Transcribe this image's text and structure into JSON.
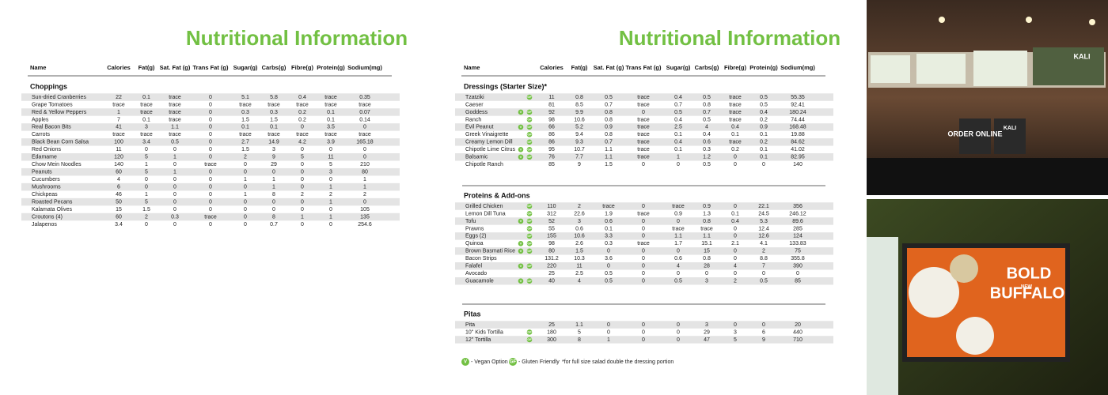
{
  "left": {
    "title": "Nutritional Information",
    "columns": [
      "Name",
      "Calories",
      "Fat(g)",
      "Sat. Fat (g)",
      "Trans Fat (g)",
      "Sugar(g)",
      "Carbs(g)",
      "Fibre(g)",
      "Protein(g)",
      "Sodium(mg)"
    ],
    "sections": [
      {
        "title": "Choppings",
        "rows": [
          {
            "name": "Sun-dried Cranberries",
            "values": [
              22,
              0.1,
              "trace",
              0,
              5.1,
              5.8,
              0.4,
              "trace",
              0.35
            ]
          },
          {
            "name": "Grape Tomatoes",
            "values": [
              "trace",
              "trace",
              "trace",
              0,
              "trace",
              "trace",
              "trace",
              "trace",
              "trace"
            ]
          },
          {
            "name": "Red & Yellow Peppers",
            "values": [
              1,
              "trace",
              "trace",
              0,
              0.3,
              0.3,
              0.2,
              0.1,
              0.07
            ]
          },
          {
            "name": "Apples",
            "values": [
              7,
              0.1,
              "trace",
              0,
              1.5,
              1.5,
              0.2,
              0.1,
              0.14
            ]
          },
          {
            "name": "Real Bacon Bits",
            "values": [
              41,
              3,
              1.1,
              0,
              0.1,
              0.1,
              0,
              3.5,
              0
            ]
          },
          {
            "name": "Carrots",
            "values": [
              "trace",
              "trace",
              "trace",
              0,
              "trace",
              "trace",
              "trace",
              "trace",
              "trace"
            ]
          },
          {
            "name": "Black Bean Corn Salsa",
            "values": [
              100,
              3.4,
              0.5,
              0,
              2.7,
              14.9,
              4.2,
              3.9,
              165.18
            ]
          },
          {
            "name": "Red Onions",
            "values": [
              11,
              0,
              0,
              0,
              1.5,
              3,
              0,
              0,
              0
            ]
          },
          {
            "name": "Edamame",
            "values": [
              120,
              5,
              1,
              0,
              2,
              9,
              5,
              11,
              0
            ]
          },
          {
            "name": "Chow Mein Noodles",
            "values": [
              140,
              1,
              0,
              "trace",
              0,
              29,
              0,
              5,
              210
            ]
          },
          {
            "name": "Peanuts",
            "values": [
              60,
              5,
              1,
              0,
              0,
              0,
              0,
              3,
              80
            ]
          },
          {
            "name": "Cucumbers",
            "values": [
              4,
              0,
              0,
              0,
              1,
              1,
              0,
              0,
              1
            ]
          },
          {
            "name": "Mushrooms",
            "values": [
              6,
              0,
              0,
              0,
              0,
              1,
              0,
              1,
              1
            ]
          },
          {
            "name": "Chickpeas",
            "values": [
              46,
              1,
              0,
              0,
              1,
              8,
              2,
              2,
              2
            ]
          },
          {
            "name": "Roasted Pecans",
            "values": [
              50,
              5,
              0,
              0,
              0,
              0,
              0,
              1,
              0
            ]
          },
          {
            "name": "Kalamata Olives",
            "values": [
              15,
              1.5,
              0,
              0,
              0,
              0,
              0,
              0,
              105
            ]
          },
          {
            "name": "Croutons (4)",
            "values": [
              60,
              2,
              0.3,
              "trace",
              0,
              8,
              1,
              1,
              135
            ]
          },
          {
            "name": "Jalapenos",
            "values": [
              3.4,
              0,
              0,
              0,
              0,
              0.7,
              0,
              0,
              254.6
            ]
          }
        ]
      }
    ]
  },
  "right": {
    "title": "Nutritional Information",
    "columns": [
      "Name",
      "Calories",
      "Fat(g)",
      "Sat. Fat (g)",
      "Trans Fat (g)",
      "Sugar(g)",
      "Carbs(g)",
      "Fibre(g)",
      "Protein(g)",
      "Sodium(mg)"
    ],
    "sections": [
      {
        "title": "Dressings (Starter Size)*",
        "rows": [
          {
            "name": "Tzatziki",
            "icons": [
              "GF"
            ],
            "values": [
              11,
              0.8,
              0.5,
              "trace",
              0.4,
              0.5,
              "trace",
              0.5,
              55.35
            ]
          },
          {
            "name": "Caeser",
            "icons": [],
            "values": [
              81,
              8.5,
              0.7,
              "trace",
              0.7,
              0.8,
              "trace",
              0.5,
              92.41
            ]
          },
          {
            "name": "Goddess",
            "icons": [
              "V",
              "GF"
            ],
            "values": [
              92,
              9.9,
              0.8,
              0,
              0.5,
              0.7,
              "trace",
              0.4,
              180.24
            ]
          },
          {
            "name": "Ranch",
            "icons": [
              "GF"
            ],
            "values": [
              98,
              10.6,
              0.8,
              "trace",
              0.4,
              0.5,
              "trace",
              0.2,
              74.44
            ]
          },
          {
            "name": "Evil Peanut",
            "icons": [
              "V",
              "GF"
            ],
            "values": [
              66,
              5.2,
              0.9,
              "trace",
              2.5,
              4,
              0.4,
              0.9,
              168.48
            ]
          },
          {
            "name": "Greek Vinaigrette",
            "icons": [
              "GF"
            ],
            "values": [
              86,
              9.4,
              0.8,
              "trace",
              0.1,
              0.4,
              0.1,
              0.1,
              19.88
            ]
          },
          {
            "name": "Creamy Lemon Dill",
            "icons": [
              "GF"
            ],
            "values": [
              86,
              9.3,
              0.7,
              "trace",
              0.4,
              0.6,
              "trace",
              0.2,
              84.62
            ]
          },
          {
            "name": "Chipotle Lime Citrus",
            "icons": [
              "V",
              "GF"
            ],
            "values": [
              95,
              10.7,
              1.1,
              "trace",
              0.1,
              0.3,
              0.2,
              0.1,
              41.02
            ]
          },
          {
            "name": "Balsamic",
            "icons": [
              "V",
              "GF"
            ],
            "values": [
              76,
              7.7,
              1.1,
              "trace",
              1,
              1.2,
              0,
              0.1,
              82.95
            ]
          },
          {
            "name": "Chipotle Ranch",
            "icons": [],
            "values": [
              85,
              9,
              1.5,
              0,
              0,
              0.5,
              0,
              0,
              140
            ]
          }
        ]
      },
      {
        "title": "Proteins & Add-ons",
        "rows": [
          {
            "name": "Grilled Chicken",
            "icons": [
              "GF"
            ],
            "values": [
              110,
              2,
              "trace",
              0,
              "trace",
              0.9,
              0,
              22.1,
              356
            ]
          },
          {
            "name": "Lemon Dill Tuna",
            "icons": [
              "GF"
            ],
            "values": [
              312,
              22.6,
              1.9,
              "trace",
              0.9,
              1.3,
              0.1,
              24.5,
              246.12
            ]
          },
          {
            "name": "Tofu",
            "icons": [
              "V",
              "GF"
            ],
            "values": [
              52,
              3,
              0.6,
              0,
              0,
              0.8,
              0.4,
              5.3,
              89.6
            ]
          },
          {
            "name": "Prawns",
            "icons": [
              "GF"
            ],
            "values": [
              55,
              0.6,
              0.1,
              0,
              "trace",
              "trace",
              0,
              12.4,
              285
            ]
          },
          {
            "name": "Eggs (2)",
            "icons": [
              "GF"
            ],
            "values": [
              155,
              10.6,
              3.3,
              0,
              1.1,
              1.1,
              0,
              12.6,
              124
            ]
          },
          {
            "name": "Quinoa",
            "icons": [
              "V",
              "GF"
            ],
            "values": [
              98,
              2.6,
              0.3,
              "trace",
              1.7,
              15.1,
              2.1,
              4.1,
              133.83
            ]
          },
          {
            "name": "Brown Basmati Rice",
            "icons": [
              "V",
              "GF"
            ],
            "values": [
              80,
              1.5,
              0,
              0,
              0,
              15,
              0,
              2,
              75
            ]
          },
          {
            "name": "Bacon Strips",
            "icons": [],
            "values": [
              131.2,
              10.3,
              3.6,
              0,
              0.6,
              0.8,
              0,
              8.8,
              355.8
            ]
          },
          {
            "name": "Falafel",
            "icons": [
              "V",
              "GF"
            ],
            "values": [
              220,
              11,
              0,
              0,
              4,
              28,
              4,
              7,
              390
            ]
          },
          {
            "name": "Avocado",
            "icons": [],
            "values": [
              25,
              2.5,
              0.5,
              0,
              0,
              0,
              0,
              0,
              0
            ]
          },
          {
            "name": "Guacamole",
            "icons": [
              "V",
              "GF"
            ],
            "values": [
              40,
              4,
              0.5,
              0,
              0.5,
              3,
              2,
              0.5,
              85
            ]
          }
        ]
      },
      {
        "title": "Pitas",
        "rows": [
          {
            "name": "Pita",
            "icons": [],
            "values": [
              25,
              1.1,
              0,
              0,
              0,
              3,
              0,
              0,
              20
            ]
          },
          {
            "name": "10\" Kids Tortilla",
            "icons": [
              "GF"
            ],
            "values": [
              180,
              5,
              0,
              0,
              0,
              29,
              3,
              6,
              440
            ]
          },
          {
            "name": "12\" Tortilla",
            "icons": [
              "GF"
            ],
            "values": [
              300,
              8,
              1,
              0,
              0,
              47,
              5,
              9,
              710
            ]
          }
        ]
      }
    ]
  },
  "legend": {
    "items": [
      {
        "icon": "V",
        "text": "- Vegan Option"
      },
      {
        "icon": "GF",
        "text": "- Gluten Friendly"
      }
    ],
    "note": "*for full size salad double the dressing portion"
  },
  "photos": [
    {
      "texts": [
        "ORDER ONLINE",
        "KALI",
        "KALI"
      ]
    },
    {
      "texts": [
        "NEW",
        "BOLD",
        "BUFFALO"
      ]
    }
  ]
}
